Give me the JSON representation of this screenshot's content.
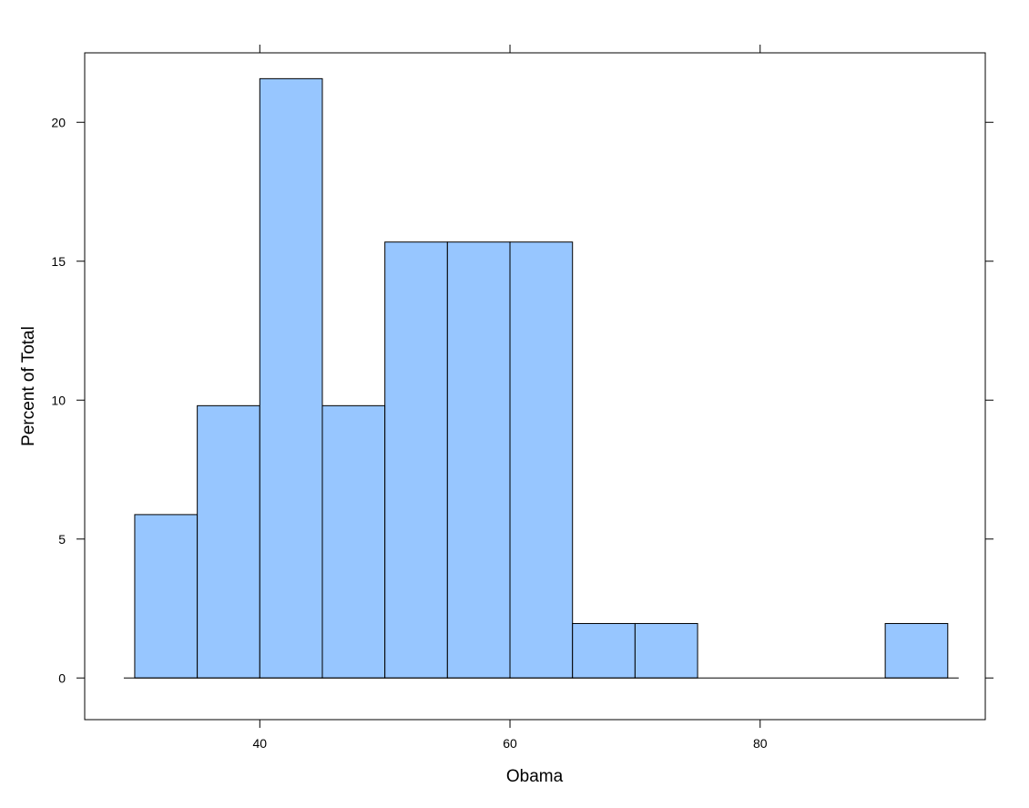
{
  "chart_data": {
    "type": "bar",
    "title": "",
    "xlabel": "Obama",
    "ylabel": "Percent of Total",
    "bin_edges": [
      30,
      35,
      40,
      45,
      50,
      55,
      60,
      65,
      70,
      75,
      80,
      85,
      90,
      95
    ],
    "values": [
      5.88,
      9.8,
      21.57,
      9.8,
      15.69,
      15.69,
      15.69,
      1.96,
      1.96,
      0,
      0,
      0,
      1.96
    ],
    "xlim": [
      26,
      98
    ],
    "ylim": [
      -1.5,
      22.5
    ],
    "x_ticks": [
      "40",
      "60",
      "80"
    ],
    "y_ticks": [
      "0",
      "5",
      "10",
      "15",
      "20"
    ],
    "grid": false,
    "legend": "none",
    "colors": {
      "bar_fill": "#97c6ff",
      "bar_stroke": "#000000",
      "axis": "#000000"
    }
  }
}
